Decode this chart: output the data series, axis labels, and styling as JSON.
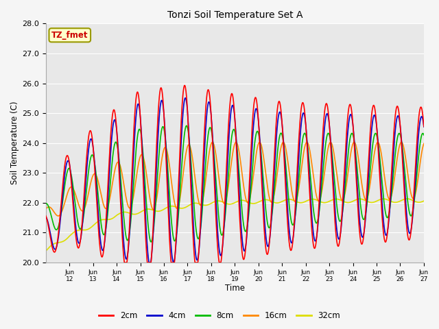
{
  "title": "Tonzi Soil Temperature Set A",
  "xlabel": "Time",
  "ylabel": "Soil Temperature (C)",
  "ylim": [
    20.0,
    28.0
  ],
  "yticks": [
    20.0,
    21.0,
    22.0,
    23.0,
    24.0,
    25.0,
    26.0,
    27.0,
    28.0
  ],
  "xtick_labels": [
    "Jun 12",
    "Jun 13",
    "Jun 14",
    "Jun 15",
    "Jun 16",
    "Jun 17",
    "Jun 18",
    "Jun 19",
    "Jun 20",
    "Jun 21",
    "Jun 22",
    "Jun 23",
    "Jun 24",
    "Jun 25",
    "Jun 26",
    "Jun 27"
  ],
  "annotation_text": "TZ_fmet",
  "annotation_color": "#cc0000",
  "annotation_bg": "#ffffcc",
  "colors": {
    "2cm": "#ff0000",
    "4cm": "#0000cc",
    "8cm": "#00bb00",
    "16cm": "#ff8800",
    "32cm": "#dddd00"
  },
  "bg_color": "#e8e8e8",
  "grid_color": "#ffffff",
  "linewidth": 1.2
}
